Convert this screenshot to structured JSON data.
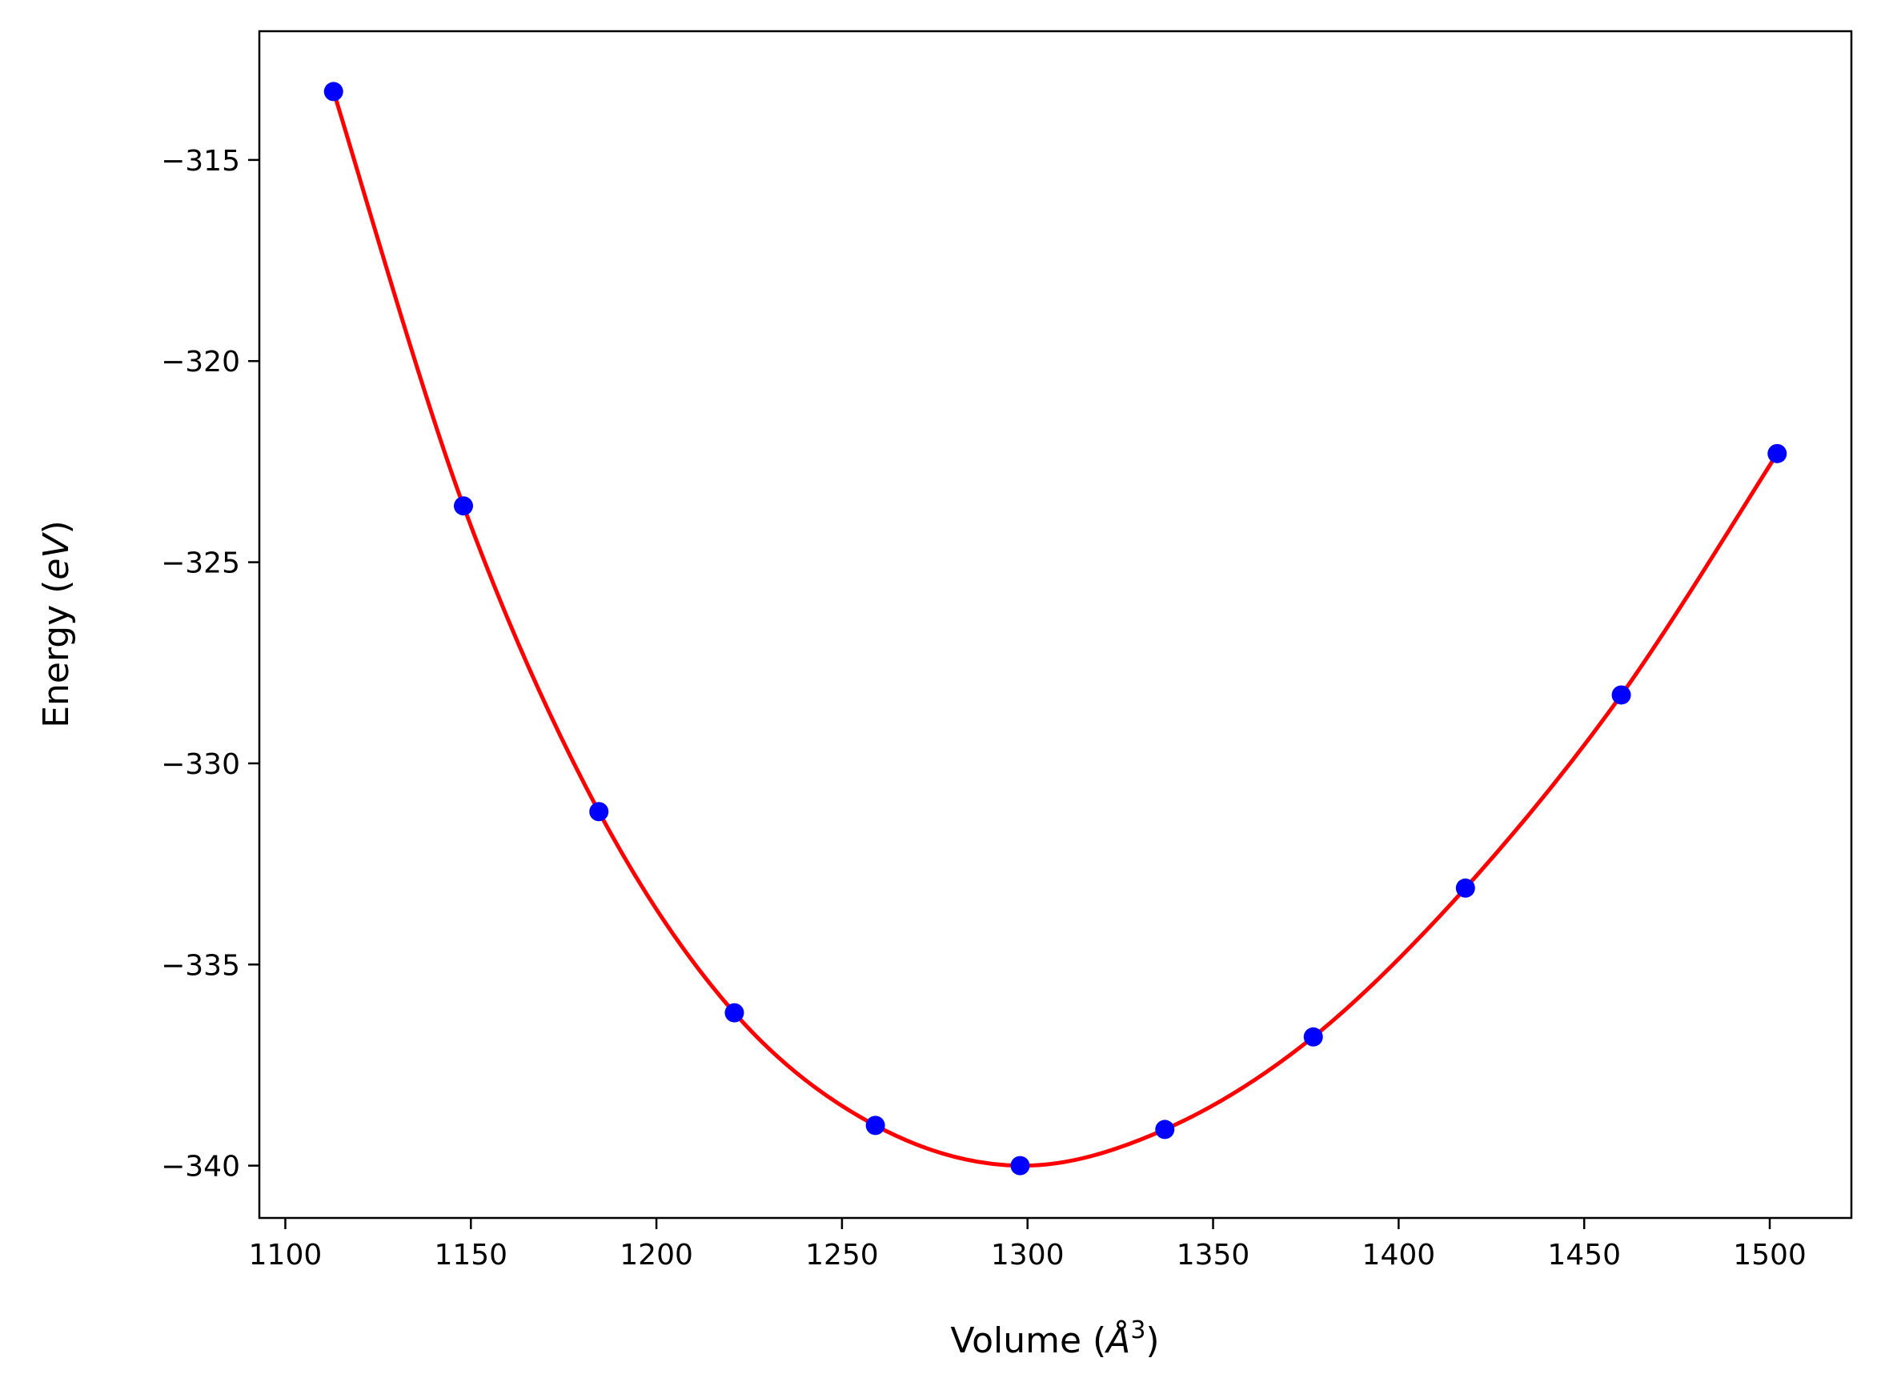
{
  "chart_data": {
    "type": "line",
    "title": "",
    "xlabel": "Volume",
    "xlabel_unit_base": "Å",
    "xlabel_unit_exp": "3",
    "ylabel": "Energy",
    "ylabel_unit": "eV",
    "xlim": [
      1093,
      1522
    ],
    "ylim": [
      -341.3,
      -311.8
    ],
    "xticks": [
      1100,
      1150,
      1200,
      1250,
      1300,
      1350,
      1400,
      1450,
      1500
    ],
    "xtick_labels": [
      "1100",
      "1150",
      "1200",
      "1250",
      "1300",
      "1350",
      "1400",
      "1450",
      "1500"
    ],
    "yticks": [
      -315,
      -320,
      -325,
      -330,
      -335,
      -340
    ],
    "ytick_labels": [
      "−315",
      "−320",
      "−325",
      "−330",
      "−335",
      "−340"
    ],
    "grid": false,
    "series": [
      {
        "kind": "points",
        "color": "#0000ff",
        "x": [
          1113.0,
          1148.0,
          1184.5,
          1221.0,
          1259.0,
          1298.0,
          1337.0,
          1377.0,
          1418.0,
          1460.0,
          1502.0
        ],
        "y": [
          -313.3,
          -323.6,
          -331.2,
          -336.2,
          -339.0,
          -340.0,
          -339.1,
          -336.8,
          -333.1,
          -328.3,
          -322.3
        ]
      },
      {
        "kind": "fit",
        "color": "#ff0000",
        "x": [
          1113.0,
          1148.0,
          1184.5,
          1221.0,
          1259.0,
          1298.0,
          1337.0,
          1377.0,
          1418.0,
          1460.0,
          1502.0
        ],
        "y": [
          -313.3,
          -323.6,
          -331.2,
          -336.2,
          -339.0,
          -340.0,
          -339.1,
          -336.8,
          -333.1,
          -328.3,
          -322.3
        ]
      }
    ]
  }
}
